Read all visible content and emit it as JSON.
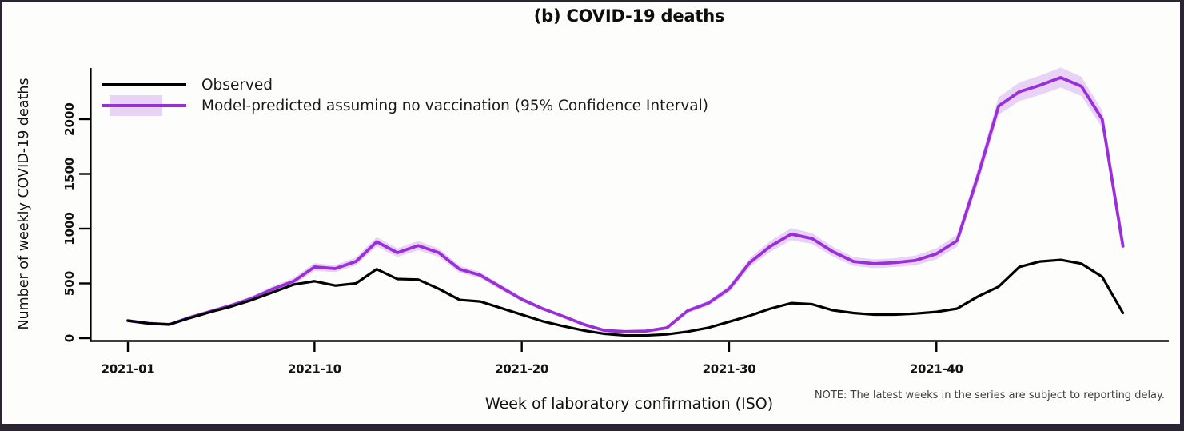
{
  "title": "(b) COVID-19 deaths",
  "note": "NOTE: The latest weeks in the series are subject to reporting delay.",
  "legend": [
    {
      "label": "Observed",
      "color": "#000000",
      "type": "line"
    },
    {
      "label": "Model-predicted assuming no vaccination (95% Confidence Interval)",
      "color": "#9a2fd9",
      "band_color": "#e8d2f6",
      "type": "line-band"
    }
  ],
  "colors": {
    "observed_line": "#000000",
    "model_line": "#9a2fd9",
    "ci_band": "#e8d2f6",
    "axis": "#000000",
    "frame": "#2b2533"
  },
  "chart_data": {
    "type": "line",
    "title": "(b) COVID-19 deaths",
    "xlabel": "Week of laboratory confirmation (ISO)",
    "ylabel": "Number of weekly COVID-19 deaths",
    "x_tick_labels": [
      "2021-01",
      "2021-10",
      "2021-20",
      "2021-30",
      "2021-40"
    ],
    "x_ticks": [
      {
        "week": 1,
        "label": "2021-01"
      },
      {
        "week": 10,
        "label": "2021-10"
      },
      {
        "week": 20,
        "label": "2021-20"
      },
      {
        "week": 30,
        "label": "2021-30"
      },
      {
        "week": 40,
        "label": "2021-40"
      }
    ],
    "y_ticks": [
      0,
      500,
      1000,
      1500,
      2000
    ],
    "ylim": [
      0,
      2500
    ],
    "x_unit": "ISO week of 2021",
    "x": [
      1,
      2,
      3,
      4,
      5,
      6,
      7,
      8,
      9,
      10,
      11,
      12,
      13,
      14,
      15,
      16,
      17,
      18,
      19,
      20,
      21,
      22,
      23,
      24,
      25,
      26,
      27,
      28,
      29,
      30,
      31,
      32,
      33,
      34,
      35,
      36,
      37,
      38,
      39,
      40,
      41,
      42,
      43,
      44,
      45,
      46,
      47,
      48,
      49
    ],
    "series": [
      {
        "name": "Observed",
        "color": "#000000",
        "values": [
          160,
          135,
          125,
          185,
          240,
          290,
          350,
          420,
          490,
          520,
          480,
          500,
          630,
          540,
          535,
          450,
          350,
          335,
          275,
          215,
          155,
          110,
          70,
          40,
          25,
          25,
          35,
          60,
          95,
          150,
          205,
          270,
          320,
          310,
          255,
          230,
          215,
          215,
          225,
          240,
          270,
          380,
          470,
          650,
          700,
          715,
          680,
          560,
          230
        ]
      },
      {
        "name": "Model-predicted assuming no vaccination",
        "color": "#9a2fd9",
        "ci_color": "#e8d2f6",
        "ci_level": "95%",
        "values": [
          160,
          135,
          125,
          190,
          245,
          300,
          365,
          450,
          520,
          650,
          635,
          700,
          880,
          780,
          845,
          780,
          630,
          575,
          465,
          355,
          270,
          200,
          125,
          70,
          60,
          65,
          95,
          250,
          320,
          450,
          690,
          840,
          950,
          910,
          790,
          700,
          680,
          690,
          710,
          770,
          890,
          1480,
          2120,
          2250,
          2310,
          2380,
          2300,
          2000,
          840
        ],
        "ci_halfwidth": [
          12,
          12,
          12,
          15,
          15,
          18,
          22,
          26,
          30,
          35,
          32,
          36,
          42,
          40,
          42,
          38,
          32,
          28,
          24,
          20,
          15,
          12,
          10,
          8,
          8,
          8,
          10,
          18,
          22,
          30,
          42,
          50,
          55,
          50,
          45,
          40,
          40,
          40,
          45,
          50,
          55,
          70,
          80,
          85,
          88,
          92,
          88,
          80,
          35
        ]
      }
    ],
    "legend_position": "top-left inside plot",
    "grid": false
  }
}
